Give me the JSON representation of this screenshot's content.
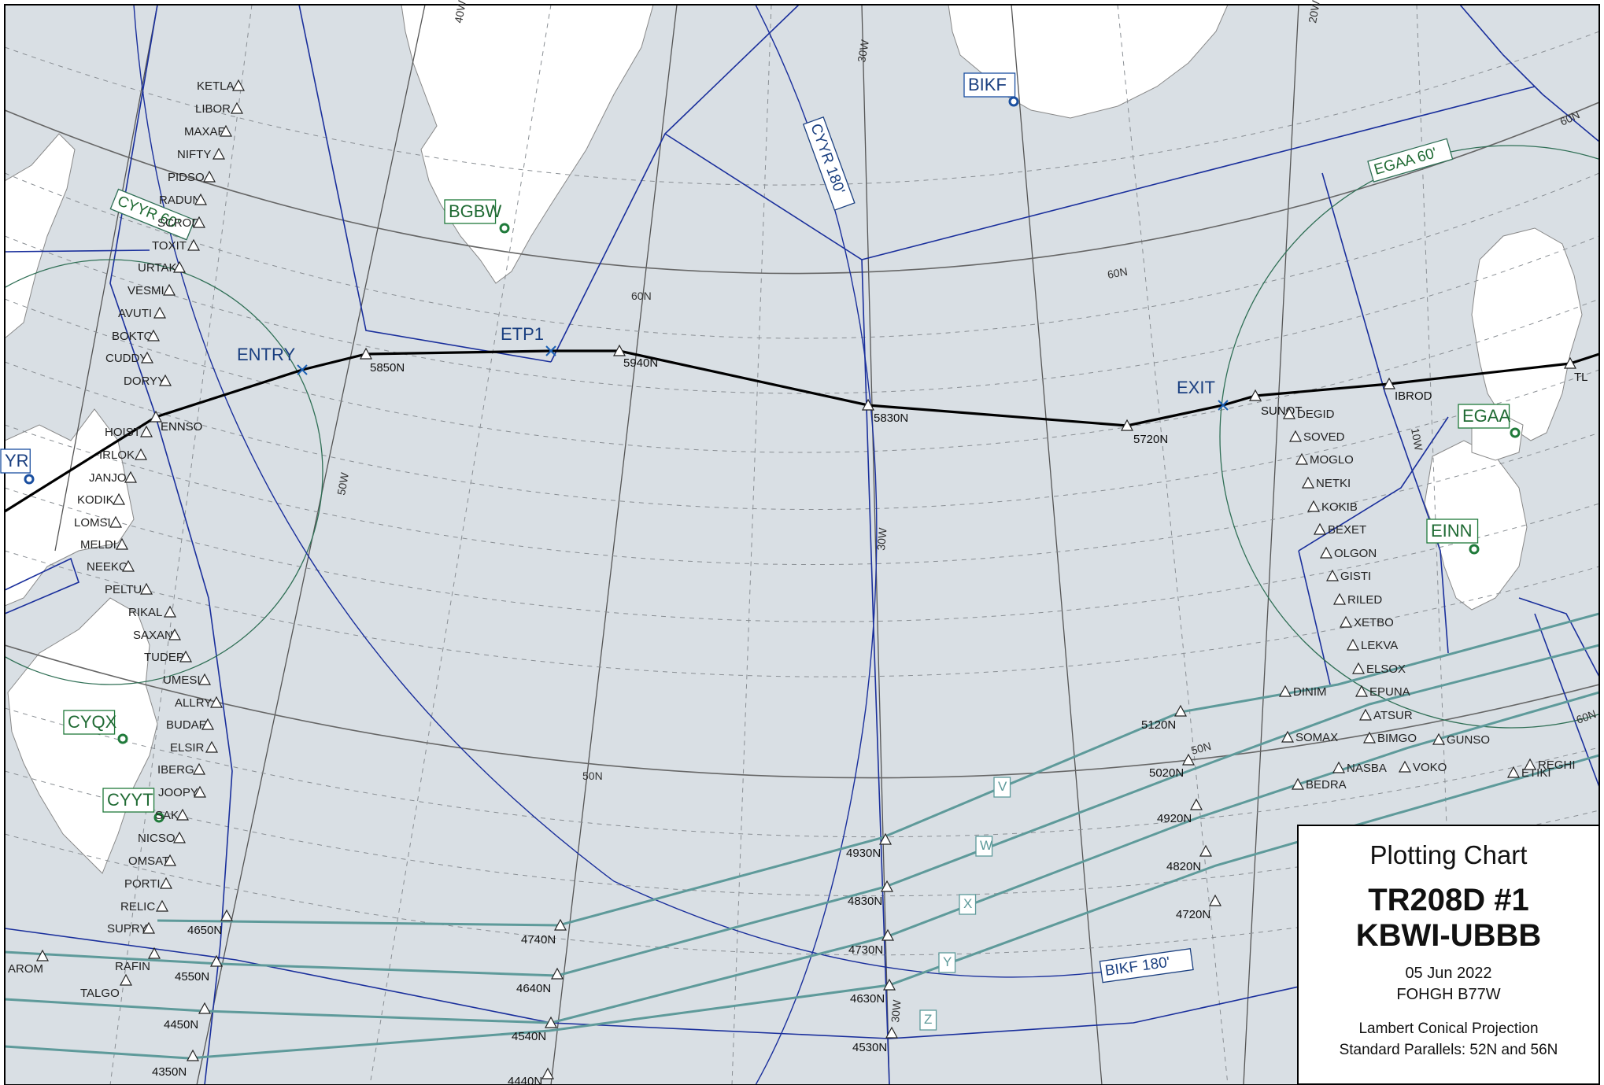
{
  "airports": [
    {
      "code": "BIKF",
      "color": "blue"
    },
    {
      "code": "BGBW",
      "color": "green"
    },
    {
      "code": "CYQX",
      "color": "green"
    },
    {
      "code": "CYYT",
      "color": "green"
    },
    {
      "code": "EGAA",
      "color": "green"
    },
    {
      "code": "EINN",
      "color": "green"
    },
    {
      "code": "YR",
      "color": "blue"
    }
  ],
  "route_points": [
    {
      "label": "ENTRY"
    },
    {
      "label": "ETP1"
    },
    {
      "label": "EXIT"
    },
    {
      "label": "5850N"
    },
    {
      "label": "5940N"
    },
    {
      "label": "5830N"
    },
    {
      "label": "5720N"
    },
    {
      "label": "ENNSO"
    },
    {
      "label": "SUNOT"
    },
    {
      "label": "IBROD"
    },
    {
      "label": "TL"
    }
  ],
  "range_rings": [
    "CYYR 60'",
    "EGAA 60'",
    "CYYR 180'",
    "BIKF 180'"
  ],
  "west_fixes": [
    "KETLA",
    "LIBOR",
    "MAXAR",
    "NIFTY",
    "PIDSO",
    "RADUN",
    "SCROD",
    "TOXIT",
    "URTAK",
    "VESMI",
    "AVUTI",
    "BOKTO",
    "CUDDY",
    "DORYY",
    "HOIST",
    "IRLOK",
    "JANJO",
    "KODIK",
    "LOMSI",
    "MELDI",
    "NEEKO",
    "PELTU",
    "RIKAL",
    "SAXAN",
    "TUDEP",
    "UMESI",
    "ALLRY",
    "BUDAR",
    "ELSIR",
    "IBERG",
    "JOOPY",
    "SAK",
    "NICSO",
    "OMSAT",
    "PORTI",
    "RELIC",
    "SUPRY"
  ],
  "east_fixes": [
    "DEGID",
    "SOVED",
    "MOGLO",
    "NETKI",
    "KOKIB",
    "BEXET",
    "OLGON",
    "GISTI",
    "RILED",
    "XETBO",
    "LEKVA",
    "ELSOX",
    "EPUNA",
    "ATSUR",
    "BIMGO",
    "GUNSO",
    "DINIM",
    "SOMAX",
    "NASBA",
    "VOKO",
    "BEDRA",
    "ETIKI",
    "REGHI"
  ],
  "track_letters": [
    "V",
    "W",
    "X",
    "Y",
    "Z"
  ],
  "track_points_west": [
    "4650N",
    "4550N",
    "4450N",
    "4350N",
    "4740N",
    "4640N",
    "4540N",
    "4440N"
  ],
  "track_points_mid": [
    "4930N",
    "4830N",
    "4730N",
    "4630N",
    "4530N"
  ],
  "track_points_east": [
    "5120N",
    "5020N",
    "4920N",
    "4820N",
    "4720N"
  ],
  "other_fixes": [
    "AROM",
    "RAFIN",
    "TALGO"
  ],
  "meridian_labels": [
    "50W",
    "40W",
    "30W",
    "30W",
    "30W",
    "20W",
    "10W"
  ],
  "parallel_labels": [
    "60N",
    "60N",
    "60N",
    "50N",
    "50N",
    "60N"
  ],
  "title_box": {
    "title": "Plotting Chart",
    "flight": "TR208D #1",
    "route": "KBWI-UBBB",
    "date": "05 Jun 2022",
    "aircraft": "FOHGH B77W",
    "projection": "Lambert Conical Projection",
    "parallels": "Standard Parallels: 52N and 56N"
  }
}
